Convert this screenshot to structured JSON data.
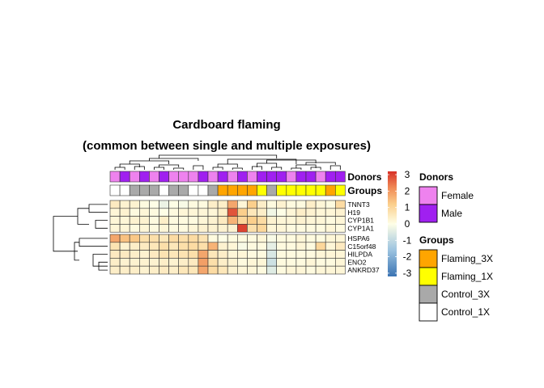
{
  "chart_data": {
    "type": "heatmap",
    "title_lines": [
      "Cardboard flaming",
      "(common between single and multiple exposures)"
    ],
    "columns": 24,
    "row_groups": [
      [
        "TNNT3",
        "H19",
        "CYP1B1",
        "CYP1A1"
      ],
      [
        "HSPA6",
        "C15orf48",
        "HILPDA",
        "ENO2",
        "ANKRD37"
      ]
    ],
    "rows": [
      "TNNT3",
      "H19",
      "CYP1B1",
      "CYP1A1",
      "HSPA6",
      "C15orf48",
      "HILPDA",
      "ENO2",
      "ANKRD37"
    ],
    "values": [
      [
        0.5,
        0.3,
        0.3,
        0.1,
        0,
        -0.3,
        0,
        -0.1,
        0.1,
        0.1,
        0.4,
        0.4,
        1.8,
        0.2,
        1.2,
        0.4,
        0.1,
        0.3,
        0.1,
        0.1,
        0.4,
        0.2,
        0.1,
        0.9
      ],
      [
        0.2,
        0.3,
        0.1,
        0.2,
        0.1,
        0,
        0.1,
        0.2,
        0.2,
        0.2,
        0.2,
        0.4,
        2.8,
        1.2,
        0.6,
        0.4,
        -0.2,
        0,
        0.2,
        0.4,
        0.3,
        0.2,
        0.2,
        0.3
      ],
      [
        0.2,
        0.2,
        0.3,
        0.3,
        0.1,
        0.4,
        0.1,
        0.1,
        0.1,
        0.2,
        0.3,
        0.5,
        1.6,
        1.0,
        1.2,
        0.9,
        0.3,
        0.2,
        0.2,
        0.3,
        0.2,
        0.2,
        0.1,
        0.2
      ],
      [
        0.2,
        0.2,
        0.1,
        0.2,
        0.1,
        0.2,
        0.1,
        0.1,
        0.2,
        0.3,
        0.3,
        0.3,
        0.3,
        3.0,
        0.8,
        1.0,
        0.2,
        0.2,
        0.1,
        0.1,
        0.1,
        0.1,
        0.2,
        0.1
      ],
      [
        1.8,
        1.4,
        1.3,
        0.8,
        0.8,
        0.6,
        0.9,
        0.8,
        0.9,
        0.7,
        0.1,
        0,
        0.1,
        0.1,
        0.1,
        0.2,
        -0.1,
        0.1,
        0.1,
        0.2,
        0.1,
        0.1,
        0.2,
        0.2
      ],
      [
        0.7,
        0.3,
        0.4,
        0.5,
        0.6,
        0.8,
        0.6,
        0.8,
        0.9,
        0.8,
        1.6,
        0.3,
        0.2,
        -0.1,
        0.1,
        0.1,
        -0.4,
        0.1,
        0.1,
        0.2,
        0.1,
        1.0,
        0.2,
        0.5
      ],
      [
        0.5,
        0.5,
        0.4,
        0.3,
        0.5,
        0.7,
        0.6,
        0.7,
        0.8,
        1.8,
        0.6,
        0.4,
        0.2,
        0.2,
        0.1,
        0.1,
        -0.6,
        0.1,
        0.1,
        0.1,
        0.1,
        0.2,
        0.2,
        0.2
      ],
      [
        0.4,
        0.3,
        0.3,
        0.3,
        0.3,
        0.4,
        0.3,
        0.4,
        0.5,
        1.9,
        0.8,
        0.4,
        0.3,
        0.1,
        0.2,
        0.2,
        -0.8,
        0.1,
        0.1,
        0.1,
        0.2,
        0.1,
        0.1,
        0.2
      ],
      [
        0.4,
        0.4,
        0.4,
        0.3,
        0.4,
        0.5,
        0.4,
        0.6,
        0.6,
        1.8,
        0.9,
        0.6,
        0.3,
        0.2,
        0.2,
        0.1,
        -0.5,
        0.1,
        0.2,
        0.2,
        0.1,
        0.2,
        0.2,
        0.2
      ]
    ],
    "annotations": {
      "labels": [
        "Donors",
        "Groups"
      ],
      "donors": [
        "Female",
        "Male",
        "Female",
        "Male",
        "Female",
        "Male",
        "Female",
        "Female",
        "Female",
        "Male",
        "Female",
        "Male",
        "Female",
        "Male",
        "Female",
        "Male",
        "Male",
        "Male",
        "Female",
        "Male",
        "Male",
        "Female",
        "Male",
        "Male"
      ],
      "groups": [
        "Control_1X",
        "Control_1X",
        "Control_3X",
        "Control_3X",
        "Control_3X",
        "Control_1X",
        "Control_3X",
        "Control_3X",
        "Control_1X",
        "Control_1X",
        "Control_3X",
        "Flaming_3X",
        "Flaming_3X",
        "Flaming_3X",
        "Flaming_3X",
        "Flaming_1X",
        "Control_3X",
        "Flaming_1X",
        "Flaming_1X",
        "Flaming_1X",
        "Flaming_1X",
        "Flaming_1X",
        "Flaming_3X",
        "Flaming_1X"
      ]
    },
    "color_scale": {
      "range": [
        -3.2,
        3.2
      ],
      "ticks": [
        "3",
        "2",
        "1",
        "0",
        "-1",
        "-2",
        "-3"
      ],
      "tick_values": [
        3,
        2,
        1,
        0,
        -1,
        -2,
        -3
      ],
      "stops": [
        {
          "v": -3.2,
          "c": "#3b74b3"
        },
        {
          "v": -1.6,
          "c": "#9cc3e0"
        },
        {
          "v": 0,
          "c": "#fefee6"
        },
        {
          "v": 1.2,
          "c": "#fbcf8c"
        },
        {
          "v": 2.2,
          "c": "#f08a56"
        },
        {
          "v": 3.2,
          "c": "#d73027"
        }
      ]
    },
    "legends": {
      "donors": {
        "title": "Donors",
        "items": [
          {
            "label": "Female",
            "color": "#ee82ee"
          },
          {
            "label": "Male",
            "color": "#a020f0"
          }
        ]
      },
      "groups": {
        "title": "Groups",
        "items": [
          {
            "label": "Flaming_3X",
            "color": "#ffa500"
          },
          {
            "label": "Flaming_1X",
            "color": "#ffff00"
          },
          {
            "label": "Control_3X",
            "color": "#a9a9a9"
          },
          {
            "label": "Control_1X",
            "color": "#ffffff"
          }
        ]
      }
    }
  }
}
